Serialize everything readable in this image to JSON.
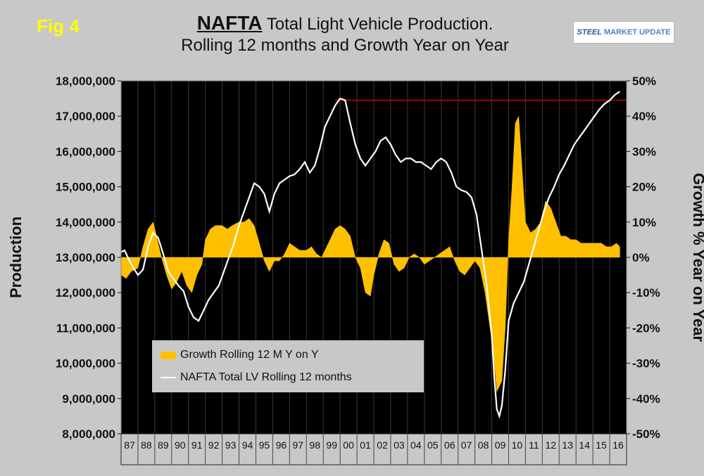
{
  "figure_label": "Fig 4",
  "title_strong": "NAFTA",
  "title_rest": " Total Light Vehicle Production.",
  "subtitle": "Rolling 12 months and Growth Year on Year",
  "logo": {
    "strong": "STEEL",
    "rest": "MARKET UPDATE"
  },
  "colors": {
    "growth": "#ffc000",
    "production": "#ffffff",
    "reference": "#cc0000",
    "plot_bg": "#000000"
  },
  "chart_data": {
    "type": "area",
    "ylabel": "Production",
    "y2label": "Growth % Year on Year",
    "ylim": [
      8000000,
      18000000
    ],
    "y2lim": [
      -50,
      50
    ],
    "yticks": [
      "8,000,000",
      "9,000,000",
      "10,000,000",
      "11,000,000",
      "12,000,000",
      "13,000,000",
      "14,000,000",
      "15,000,000",
      "16,000,000",
      "17,000,000",
      "18,000,000"
    ],
    "y2ticks": [
      "-50%",
      "-40%",
      "-30%",
      "-20%",
      "-10%",
      "0%",
      "10%",
      "20%",
      "30%",
      "40%",
      "50%"
    ],
    "categories": [
      "87",
      "88",
      "89",
      "90",
      "91",
      "92",
      "93",
      "94",
      "95",
      "96",
      "97",
      "98",
      "99",
      "00",
      "01",
      "02",
      "03",
      "04",
      "05",
      "06",
      "07",
      "08",
      "09",
      "10",
      "11",
      "12",
      "13",
      "14",
      "15",
      "16"
    ],
    "xlim": [
      1987,
      2017
    ],
    "grid": true,
    "legend_position": "bottom-left",
    "reference_line": {
      "value": 17450000,
      "from": 1999.7,
      "to": 2017
    },
    "series": [
      {
        "name": "Growth Rolling 12 M Y on Y",
        "type": "area",
        "axis": "right",
        "x": [
          1987.0,
          1987.3,
          1987.6,
          1988.0,
          1988.3,
          1988.6,
          1988.9,
          1989.1,
          1989.4,
          1989.7,
          1990.0,
          1990.3,
          1990.6,
          1990.9,
          1991.2,
          1991.5,
          1991.8,
          1992.0,
          1992.3,
          1992.6,
          1993.0,
          1993.3,
          1993.6,
          1994.0,
          1994.3,
          1994.6,
          1994.9,
          1995.2,
          1995.5,
          1995.8,
          1996.1,
          1996.4,
          1996.7,
          1997.0,
          1997.3,
          1997.6,
          1998.0,
          1998.3,
          1998.6,
          1998.9,
          1999.1,
          1999.4,
          1999.7,
          2000.0,
          2000.3,
          2000.6,
          2000.9,
          2001.2,
          2001.5,
          2001.8,
          2002.0,
          2002.3,
          2002.6,
          2002.9,
          2003.2,
          2003.5,
          2003.8,
          2004.1,
          2004.4,
          2004.7,
          2005.0,
          2005.3,
          2005.6,
          2005.9,
          2006.2,
          2006.5,
          2006.8,
          2007.1,
          2007.4,
          2007.7,
          2008.0,
          2008.3,
          2008.6,
          2008.9,
          2009.1,
          2009.3,
          2009.6,
          2009.8,
          2010.0,
          2010.2,
          2010.4,
          2010.6,
          2010.8,
          2011.0,
          2011.3,
          2011.6,
          2011.9,
          2012.2,
          2012.5,
          2012.8,
          2013.1,
          2013.4,
          2013.7,
          2014.0,
          2014.3,
          2014.6,
          2014.9,
          2015.2,
          2015.5,
          2015.8,
          2016.1,
          2016.4,
          2016.6
        ],
        "values": [
          -5,
          -6,
          -4,
          -3,
          3,
          8,
          10,
          6,
          0,
          -5,
          -9,
          -7,
          -4,
          -8,
          -10,
          -5,
          -2,
          5,
          8,
          9,
          9,
          8,
          9,
          10,
          10,
          11,
          9,
          4,
          -1,
          -4,
          -1,
          -1,
          1,
          4,
          3,
          2,
          2,
          3,
          1,
          0,
          2,
          5,
          8,
          9,
          8,
          6,
          0,
          -3,
          -10,
          -11,
          -5,
          1,
          5,
          4,
          -2,
          -4,
          -3,
          0,
          1,
          0,
          -2,
          -1,
          0,
          1,
          2,
          3,
          -1,
          -4,
          -5,
          -3,
          -1,
          -3,
          -10,
          -20,
          -27,
          -38,
          -35,
          -20,
          5,
          20,
          38,
          40,
          25,
          10,
          7,
          8,
          10,
          16,
          14,
          10,
          6,
          6,
          5,
          5,
          4,
          4,
          4,
          4,
          4,
          3,
          3,
          4,
          3
        ]
      },
      {
        "name": "NAFTA Total LV Rolling 12 months",
        "type": "line",
        "axis": "left",
        "x": [
          1987.0,
          1987.2,
          1987.5,
          1987.8,
          1988.0,
          1988.3,
          1988.6,
          1988.9,
          1989.2,
          1989.5,
          1989.8,
          1990.1,
          1990.4,
          1990.7,
          1991.0,
          1991.3,
          1991.6,
          1991.9,
          1992.2,
          1992.5,
          1992.8,
          1993.1,
          1993.4,
          1993.7,
          1994.0,
          1994.3,
          1994.6,
          1994.9,
          1995.2,
          1995.5,
          1995.8,
          1996.1,
          1996.4,
          1996.7,
          1997.0,
          1997.3,
          1997.6,
          1997.9,
          1998.2,
          1998.5,
          1998.8,
          1999.1,
          1999.4,
          1999.7,
          2000.0,
          2000.3,
          2000.6,
          2000.9,
          2001.2,
          2001.5,
          2001.8,
          2002.1,
          2002.4,
          2002.7,
          2003.0,
          2003.3,
          2003.6,
          2003.9,
          2004.2,
          2004.5,
          2004.8,
          2005.1,
          2005.4,
          2005.7,
          2006.0,
          2006.3,
          2006.6,
          2006.9,
          2007.2,
          2007.5,
          2007.8,
          2008.1,
          2008.4,
          2008.7,
          2009.0,
          2009.15,
          2009.3,
          2009.45,
          2009.6,
          2009.8,
          2010.0,
          2010.3,
          2010.6,
          2010.9,
          2011.2,
          2011.5,
          2011.8,
          2012.1,
          2012.4,
          2012.7,
          2013.0,
          2013.3,
          2013.6,
          2013.9,
          2014.2,
          2014.5,
          2014.8,
          2015.1,
          2015.4,
          2015.7,
          2016.0,
          2016.3,
          2016.6
        ],
        "values": [
          13150000,
          13200000,
          12900000,
          12650000,
          12500000,
          12650000,
          13300000,
          13700000,
          13550000,
          13100000,
          12600000,
          12400000,
          12200000,
          12050000,
          11600000,
          11300000,
          11200000,
          11500000,
          11800000,
          12000000,
          12200000,
          12600000,
          13000000,
          13400000,
          13900000,
          14300000,
          14700000,
          15100000,
          15000000,
          14800000,
          14300000,
          14800000,
          15100000,
          15200000,
          15300000,
          15350000,
          15500000,
          15700000,
          15400000,
          15600000,
          16100000,
          16700000,
          17000000,
          17300000,
          17500000,
          17450000,
          16800000,
          16200000,
          15800000,
          15600000,
          15800000,
          16000000,
          16300000,
          16400000,
          16200000,
          15900000,
          15700000,
          15800000,
          15800000,
          15700000,
          15700000,
          15600000,
          15500000,
          15700000,
          15800000,
          15700000,
          15400000,
          15000000,
          14900000,
          14850000,
          14700000,
          14200000,
          13200000,
          12200000,
          10800000,
          9600000,
          8700000,
          8500000,
          8800000,
          9800000,
          11200000,
          11700000,
          12000000,
          12300000,
          12800000,
          13300000,
          13800000,
          14300000,
          14700000,
          15000000,
          15350000,
          15600000,
          15900000,
          16200000,
          16400000,
          16600000,
          16800000,
          17000000,
          17200000,
          17350000,
          17450000,
          17600000,
          17700000
        ]
      }
    ]
  }
}
